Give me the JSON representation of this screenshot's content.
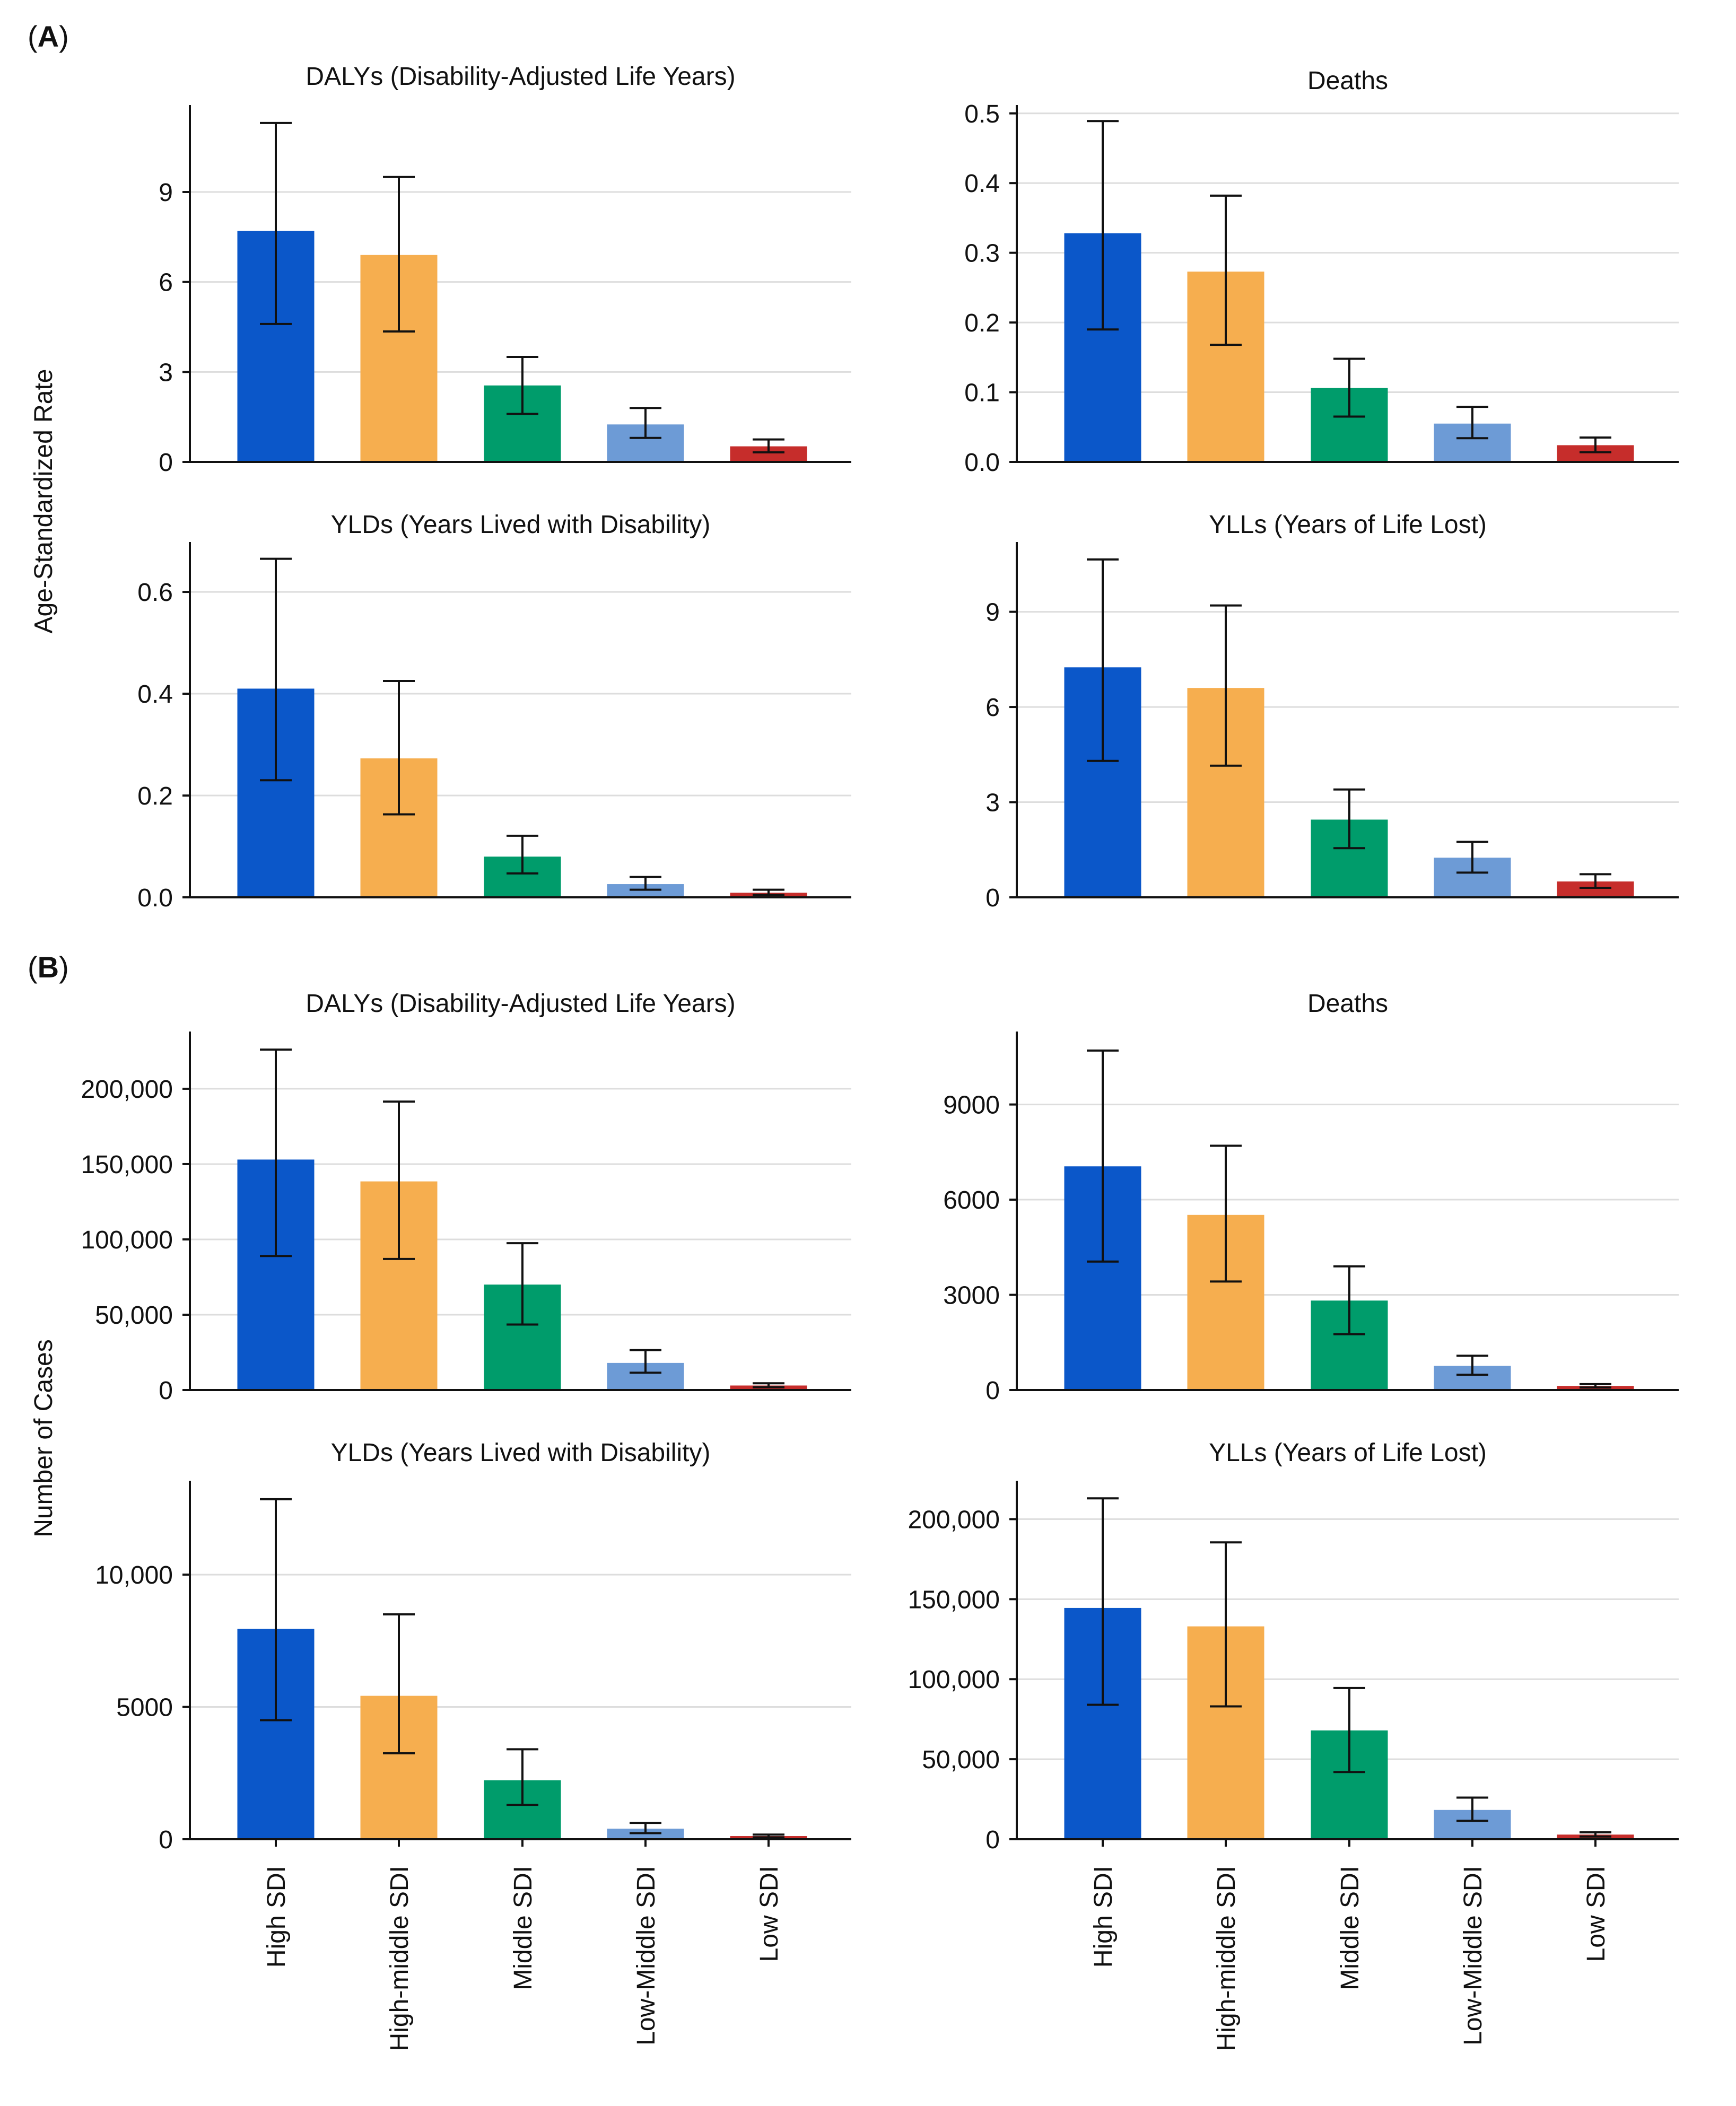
{
  "panels": [
    {
      "letter": "A",
      "axis_label": "Age-Standardized Rate"
    },
    {
      "letter": "B",
      "axis_label": "Number of Cases"
    }
  ],
  "categories": [
    "High SDI",
    "High-middle SDI",
    "Middle SDI",
    "Low-Middle SDI",
    "Low SDI"
  ],
  "colors": [
    "#0b57c9",
    "#f6ae4f",
    "#009c6b",
    "#6d9bd6",
    "#c62d2b"
  ],
  "chart_data": [
    {
      "type": "bar",
      "panel": "A",
      "title": "DALYs (Disability-Adjusted Life Years)",
      "categories": [
        "High SDI",
        "High-middle SDI",
        "Middle SDI",
        "Low-Middle SDI",
        "Low SDI"
      ],
      "values": [
        7.7,
        6.9,
        2.55,
        1.25,
        0.52
      ],
      "lower": [
        4.6,
        4.35,
        1.6,
        0.8,
        0.32
      ],
      "upper": [
        11.3,
        9.5,
        3.5,
        1.8,
        0.75
      ],
      "yticks": [
        0,
        3,
        6,
        9
      ],
      "ytick_labels": [
        "0",
        "3",
        "6",
        "9"
      ],
      "ylim": [
        0,
        11.9
      ],
      "ylabel": "Age-Standardized Rate",
      "xlabel": ""
    },
    {
      "type": "bar",
      "panel": "A",
      "title": "Deaths",
      "categories": [
        "High SDI",
        "High-middle SDI",
        "Middle SDI",
        "Low-Middle SDI",
        "Low SDI"
      ],
      "values": [
        0.328,
        0.273,
        0.106,
        0.055,
        0.024
      ],
      "lower": [
        0.19,
        0.168,
        0.065,
        0.034,
        0.014
      ],
      "upper": [
        0.489,
        0.382,
        0.148,
        0.079,
        0.035
      ],
      "yticks": [
        0,
        0.1,
        0.2,
        0.3,
        0.4,
        0.5
      ],
      "ytick_labels": [
        "0.0",
        "0.1",
        "0.2",
        "0.3",
        "0.4",
        "0.5"
      ],
      "ylim": [
        0,
        0.512
      ],
      "ylabel": "Age-Standardized Rate",
      "xlabel": ""
    },
    {
      "type": "bar",
      "panel": "A",
      "title": "YLDs (Years Lived with Disability)",
      "categories": [
        "High SDI",
        "High-middle SDI",
        "Middle SDI",
        "Low-Middle SDI",
        "Low SDI"
      ],
      "values": [
        0.41,
        0.273,
        0.08,
        0.026,
        0.009
      ],
      "lower": [
        0.23,
        0.163,
        0.047,
        0.015,
        0.005
      ],
      "upper": [
        0.665,
        0.425,
        0.121,
        0.04,
        0.015
      ],
      "yticks": [
        0,
        0.2,
        0.4,
        0.6
      ],
      "ytick_labels": [
        "0.0",
        "0.2",
        "0.4",
        "0.6"
      ],
      "ylim": [
        0,
        0.698
      ],
      "ylabel": "Age-Standardized Rate",
      "xlabel": ""
    },
    {
      "type": "bar",
      "panel": "A",
      "title": "YLLs (Years of Life Lost)",
      "categories": [
        "High SDI",
        "High-middle SDI",
        "Middle SDI",
        "Low-Middle SDI",
        "Low SDI"
      ],
      "values": [
        7.25,
        6.6,
        2.45,
        1.25,
        0.5
      ],
      "lower": [
        4.3,
        4.15,
        1.55,
        0.78,
        0.3
      ],
      "upper": [
        10.65,
        9.2,
        3.4,
        1.75,
        0.73
      ],
      "yticks": [
        0,
        3,
        6,
        9
      ],
      "ytick_labels": [
        "0",
        "3",
        "6",
        "9"
      ],
      "ylim": [
        0,
        11.2
      ],
      "ylabel": "Age-Standardized Rate",
      "xlabel": ""
    },
    {
      "type": "bar",
      "panel": "B",
      "title": "DALYs (Disability-Adjusted Life Years)",
      "categories": [
        "High SDI",
        "High-middle SDI",
        "Middle SDI",
        "Low-Middle SDI",
        "Low SDI"
      ],
      "values": [
        153000,
        138500,
        70000,
        18000,
        3000
      ],
      "lower": [
        89000,
        87000,
        43500,
        11500,
        1800
      ],
      "upper": [
        226000,
        191500,
        97500,
        26500,
        4500
      ],
      "yticks": [
        0,
        50000,
        100000,
        150000,
        200000
      ],
      "ytick_labels": [
        "0",
        "50,000",
        "100,000",
        "150,000",
        "200,000"
      ],
      "ylim": [
        0,
        238000
      ],
      "ylabel": "Number of Cases",
      "xlabel": ""
    },
    {
      "type": "bar",
      "panel": "B",
      "title": "Deaths",
      "categories": [
        "High SDI",
        "High-middle SDI",
        "Middle SDI",
        "Low-Middle SDI",
        "Low SDI"
      ],
      "values": [
        7050,
        5520,
        2820,
        760,
        130
      ],
      "lower": [
        4050,
        3420,
        1760,
        480,
        80
      ],
      "upper": [
        10700,
        7700,
        3900,
        1080,
        185
      ],
      "yticks": [
        0,
        3000,
        6000,
        9000
      ],
      "ytick_labels": [
        "0",
        "3000",
        "6000",
        "9000"
      ],
      "ylim": [
        0,
        11300
      ],
      "ylabel": "Number of Cases",
      "xlabel": ""
    },
    {
      "type": "bar",
      "panel": "B",
      "title": "YLDs (Years Lived with Disability)",
      "categories": [
        "High SDI",
        "High-middle SDI",
        "Middle SDI",
        "Low-Middle SDI",
        "Low SDI"
      ],
      "values": [
        7950,
        5420,
        2230,
        400,
        120
      ],
      "lower": [
        4500,
        3250,
        1300,
        230,
        70
      ],
      "upper": [
        12850,
        8500,
        3400,
        620,
        175
      ],
      "yticks": [
        0,
        5000,
        10000
      ],
      "ytick_labels": [
        "0",
        "5000",
        "10,000"
      ],
      "ylim": [
        0,
        13550
      ],
      "ylabel": "Number of Cases",
      "xlabel": ""
    },
    {
      "type": "bar",
      "panel": "B",
      "title": "YLLs (Years of Life Lost)",
      "categories": [
        "High SDI",
        "High-middle SDI",
        "Middle SDI",
        "Low-Middle SDI",
        "Low SDI"
      ],
      "values": [
        144500,
        133000,
        68000,
        18300,
        2900
      ],
      "lower": [
        84000,
        83000,
        42000,
        11500,
        1700
      ],
      "upper": [
        213000,
        185500,
        94500,
        26000,
        4300
      ],
      "yticks": [
        0,
        50000,
        100000,
        150000,
        200000
      ],
      "ytick_labels": [
        "0",
        "50,000",
        "100,000",
        "150,000",
        "200,000"
      ],
      "ylim": [
        0,
        224000
      ],
      "ylabel": "Number of Cases",
      "xlabel": ""
    }
  ]
}
